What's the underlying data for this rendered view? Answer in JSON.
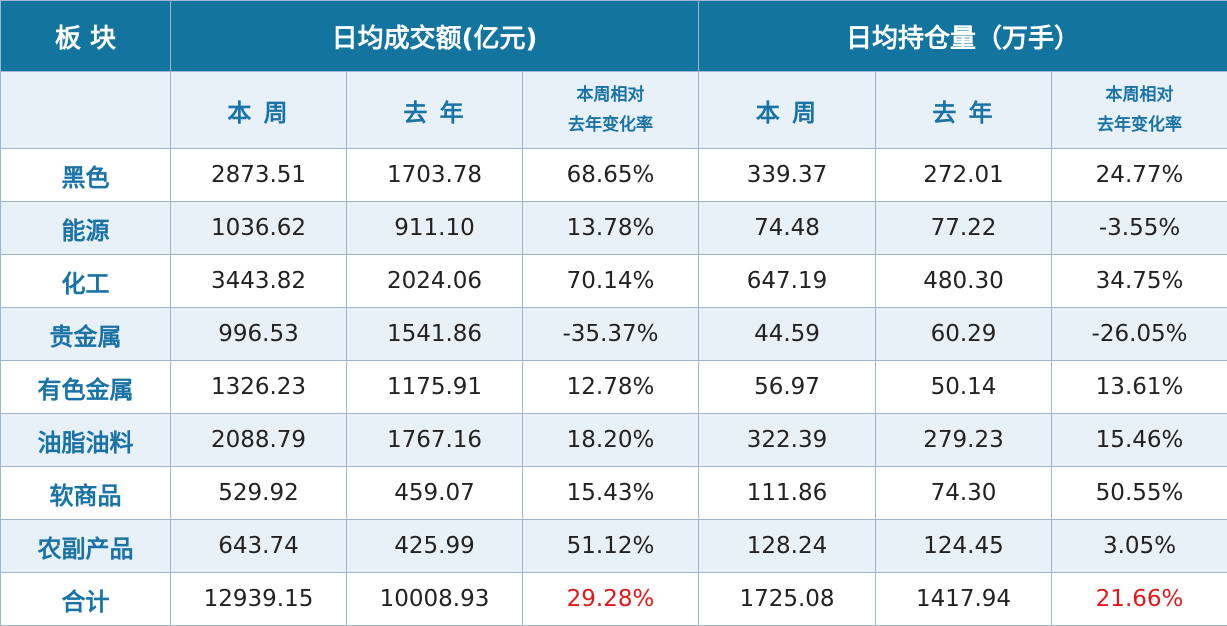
{
  "header": {
    "sector": "板 块",
    "turnover_group": "日均成交额(亿元)",
    "position_group": "日均持仓量（万手）",
    "sub": {
      "this_week": "本 周",
      "last_year": "去 年",
      "change_line1": "本周相对",
      "change_line2": "去年变化率"
    }
  },
  "rows": [
    {
      "sector": "黑色",
      "turnover_week": "2873.51",
      "turnover_last_year": "1703.78",
      "turnover_change": "68.65%",
      "position_week": "339.37",
      "position_last_year": "272.01",
      "position_change": "24.77%"
    },
    {
      "sector": "能源",
      "turnover_week": "1036.62",
      "turnover_last_year": "911.10",
      "turnover_change": "13.78%",
      "position_week": "74.48",
      "position_last_year": "77.22",
      "position_change": "-3.55%"
    },
    {
      "sector": "化工",
      "turnover_week": "3443.82",
      "turnover_last_year": "2024.06",
      "turnover_change": "70.14%",
      "position_week": "647.19",
      "position_last_year": "480.30",
      "position_change": "34.75%"
    },
    {
      "sector": "贵金属",
      "turnover_week": "996.53",
      "turnover_last_year": "1541.86",
      "turnover_change": "-35.37%",
      "position_week": "44.59",
      "position_last_year": "60.29",
      "position_change": "-26.05%"
    },
    {
      "sector": "有色金属",
      "turnover_week": "1326.23",
      "turnover_last_year": "1175.91",
      "turnover_change": "12.78%",
      "position_week": "56.97",
      "position_last_year": "50.14",
      "position_change": "13.61%"
    },
    {
      "sector": "油脂油料",
      "turnover_week": "2088.79",
      "turnover_last_year": "1767.16",
      "turnover_change": "18.20%",
      "position_week": "322.39",
      "position_last_year": "279.23",
      "position_change": "15.46%"
    },
    {
      "sector": "软商品",
      "turnover_week": "529.92",
      "turnover_last_year": "459.07",
      "turnover_change": "15.43%",
      "position_week": "111.86",
      "position_last_year": "74.30",
      "position_change": "50.55%"
    },
    {
      "sector": "农副产品",
      "turnover_week": "643.74",
      "turnover_last_year": "425.99",
      "turnover_change": "51.12%",
      "position_week": "128.24",
      "position_last_year": "124.45",
      "position_change": "3.05%"
    },
    {
      "sector": "合计",
      "turnover_week": "12939.15",
      "turnover_last_year": "10008.93",
      "turnover_change": "29.28%",
      "position_week": "1725.08",
      "position_last_year": "1417.94",
      "position_change": "21.66%"
    }
  ],
  "colors": {
    "header_bg": "#12749f",
    "subheader_bg": "#e9f1f8",
    "category_text": "#1a73a6",
    "highlight_red": "#e2191c"
  }
}
